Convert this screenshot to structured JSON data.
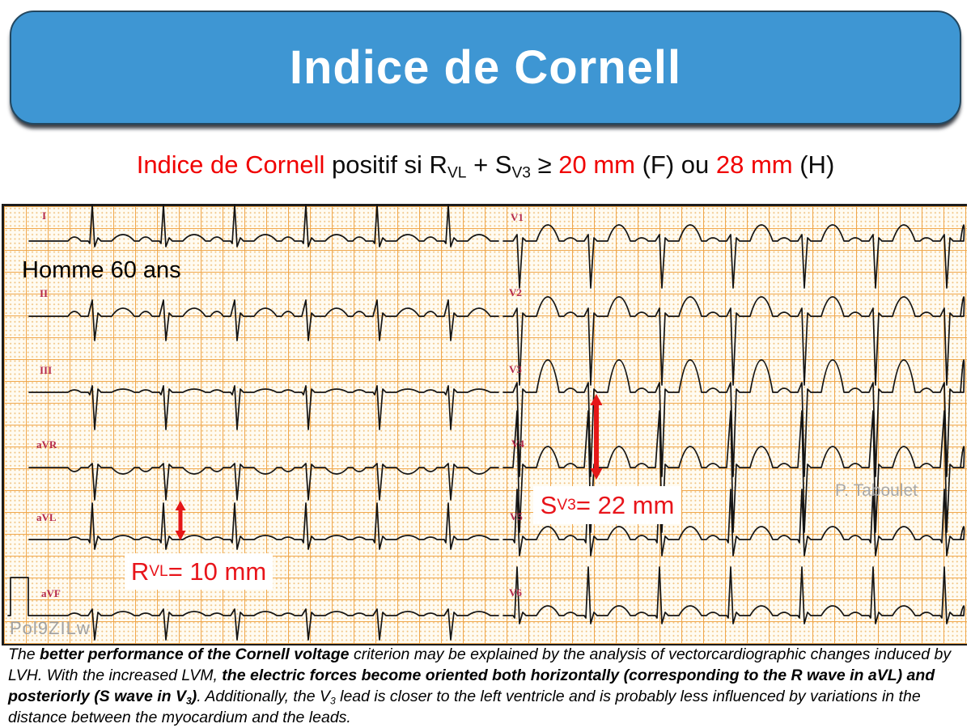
{
  "header": {
    "title": "Indice de Cornell"
  },
  "subtitle": {
    "segments": [
      {
        "t": "Indice de Cornell",
        "red": true
      },
      {
        "t": " positif si R"
      },
      {
        "t": "VL",
        "sub": true
      },
      {
        "t": " + S"
      },
      {
        "t": "V3",
        "sub": true
      },
      {
        "t": " ≥ "
      },
      {
        "t": "20 mm",
        "red": true
      },
      {
        "t": " (F) ou "
      },
      {
        "t": "28 mm",
        "red": true
      },
      {
        "t": " (H)"
      }
    ]
  },
  "ecg": {
    "patient_label": "Homme 60 ans",
    "leads": {
      "limb": [
        "I",
        "II",
        "III",
        "aVR",
        "aVL",
        "aVF"
      ],
      "precordial": [
        "V1",
        "V2",
        "V3",
        "V4",
        "V5",
        "V6"
      ]
    },
    "annotations": {
      "sv3_segments": [
        {
          "t": "S"
        },
        {
          "t": "V3",
          "sub": true
        },
        {
          "t": " = 22 mm"
        }
      ],
      "rvl_segments": [
        {
          "t": "R"
        },
        {
          "t": "VL",
          "sub": true
        },
        {
          "t": " = 10 mm"
        }
      ]
    },
    "measurements": {
      "r_avl_mm": "10",
      "s_v3_mm": "22"
    },
    "watermark_author": "P. Taboulet",
    "watermark_id": "Pol9ZILw"
  },
  "footer": {
    "segments": [
      {
        "t": "The "
      },
      {
        "t": "better performance of the Cornell voltage",
        "b": true
      },
      {
        "t": " criterion may be explained by the analysis of vectorcardiographic changes induced by LVH. With the increased LVM, "
      },
      {
        "t": "the electric forces become oriented both horizontally (corresponding to the R wave in aVL) and posteriorly (S wave in V",
        "b": true
      },
      {
        "t": "3",
        "b": true,
        "sub": true
      },
      {
        "t": ")",
        "b": true
      },
      {
        "t": ". Additionally, the V"
      },
      {
        "t": "3",
        "sub": true
      },
      {
        "t": " lead is closer to the left ventricle and is probably less influenced by variations in the distance between the myocardium and the leads."
      }
    ]
  },
  "colors": {
    "header_blue": "#3E96D3",
    "accent_red": "#F00000",
    "annotation_red": "#E8151B",
    "paper_cream": "#FFFBF1",
    "grid_orange": "#F0A446",
    "lead_label_crimson": "#B5294B",
    "watermark_gray": "#A9A9A9",
    "trace_black": "#141414"
  }
}
